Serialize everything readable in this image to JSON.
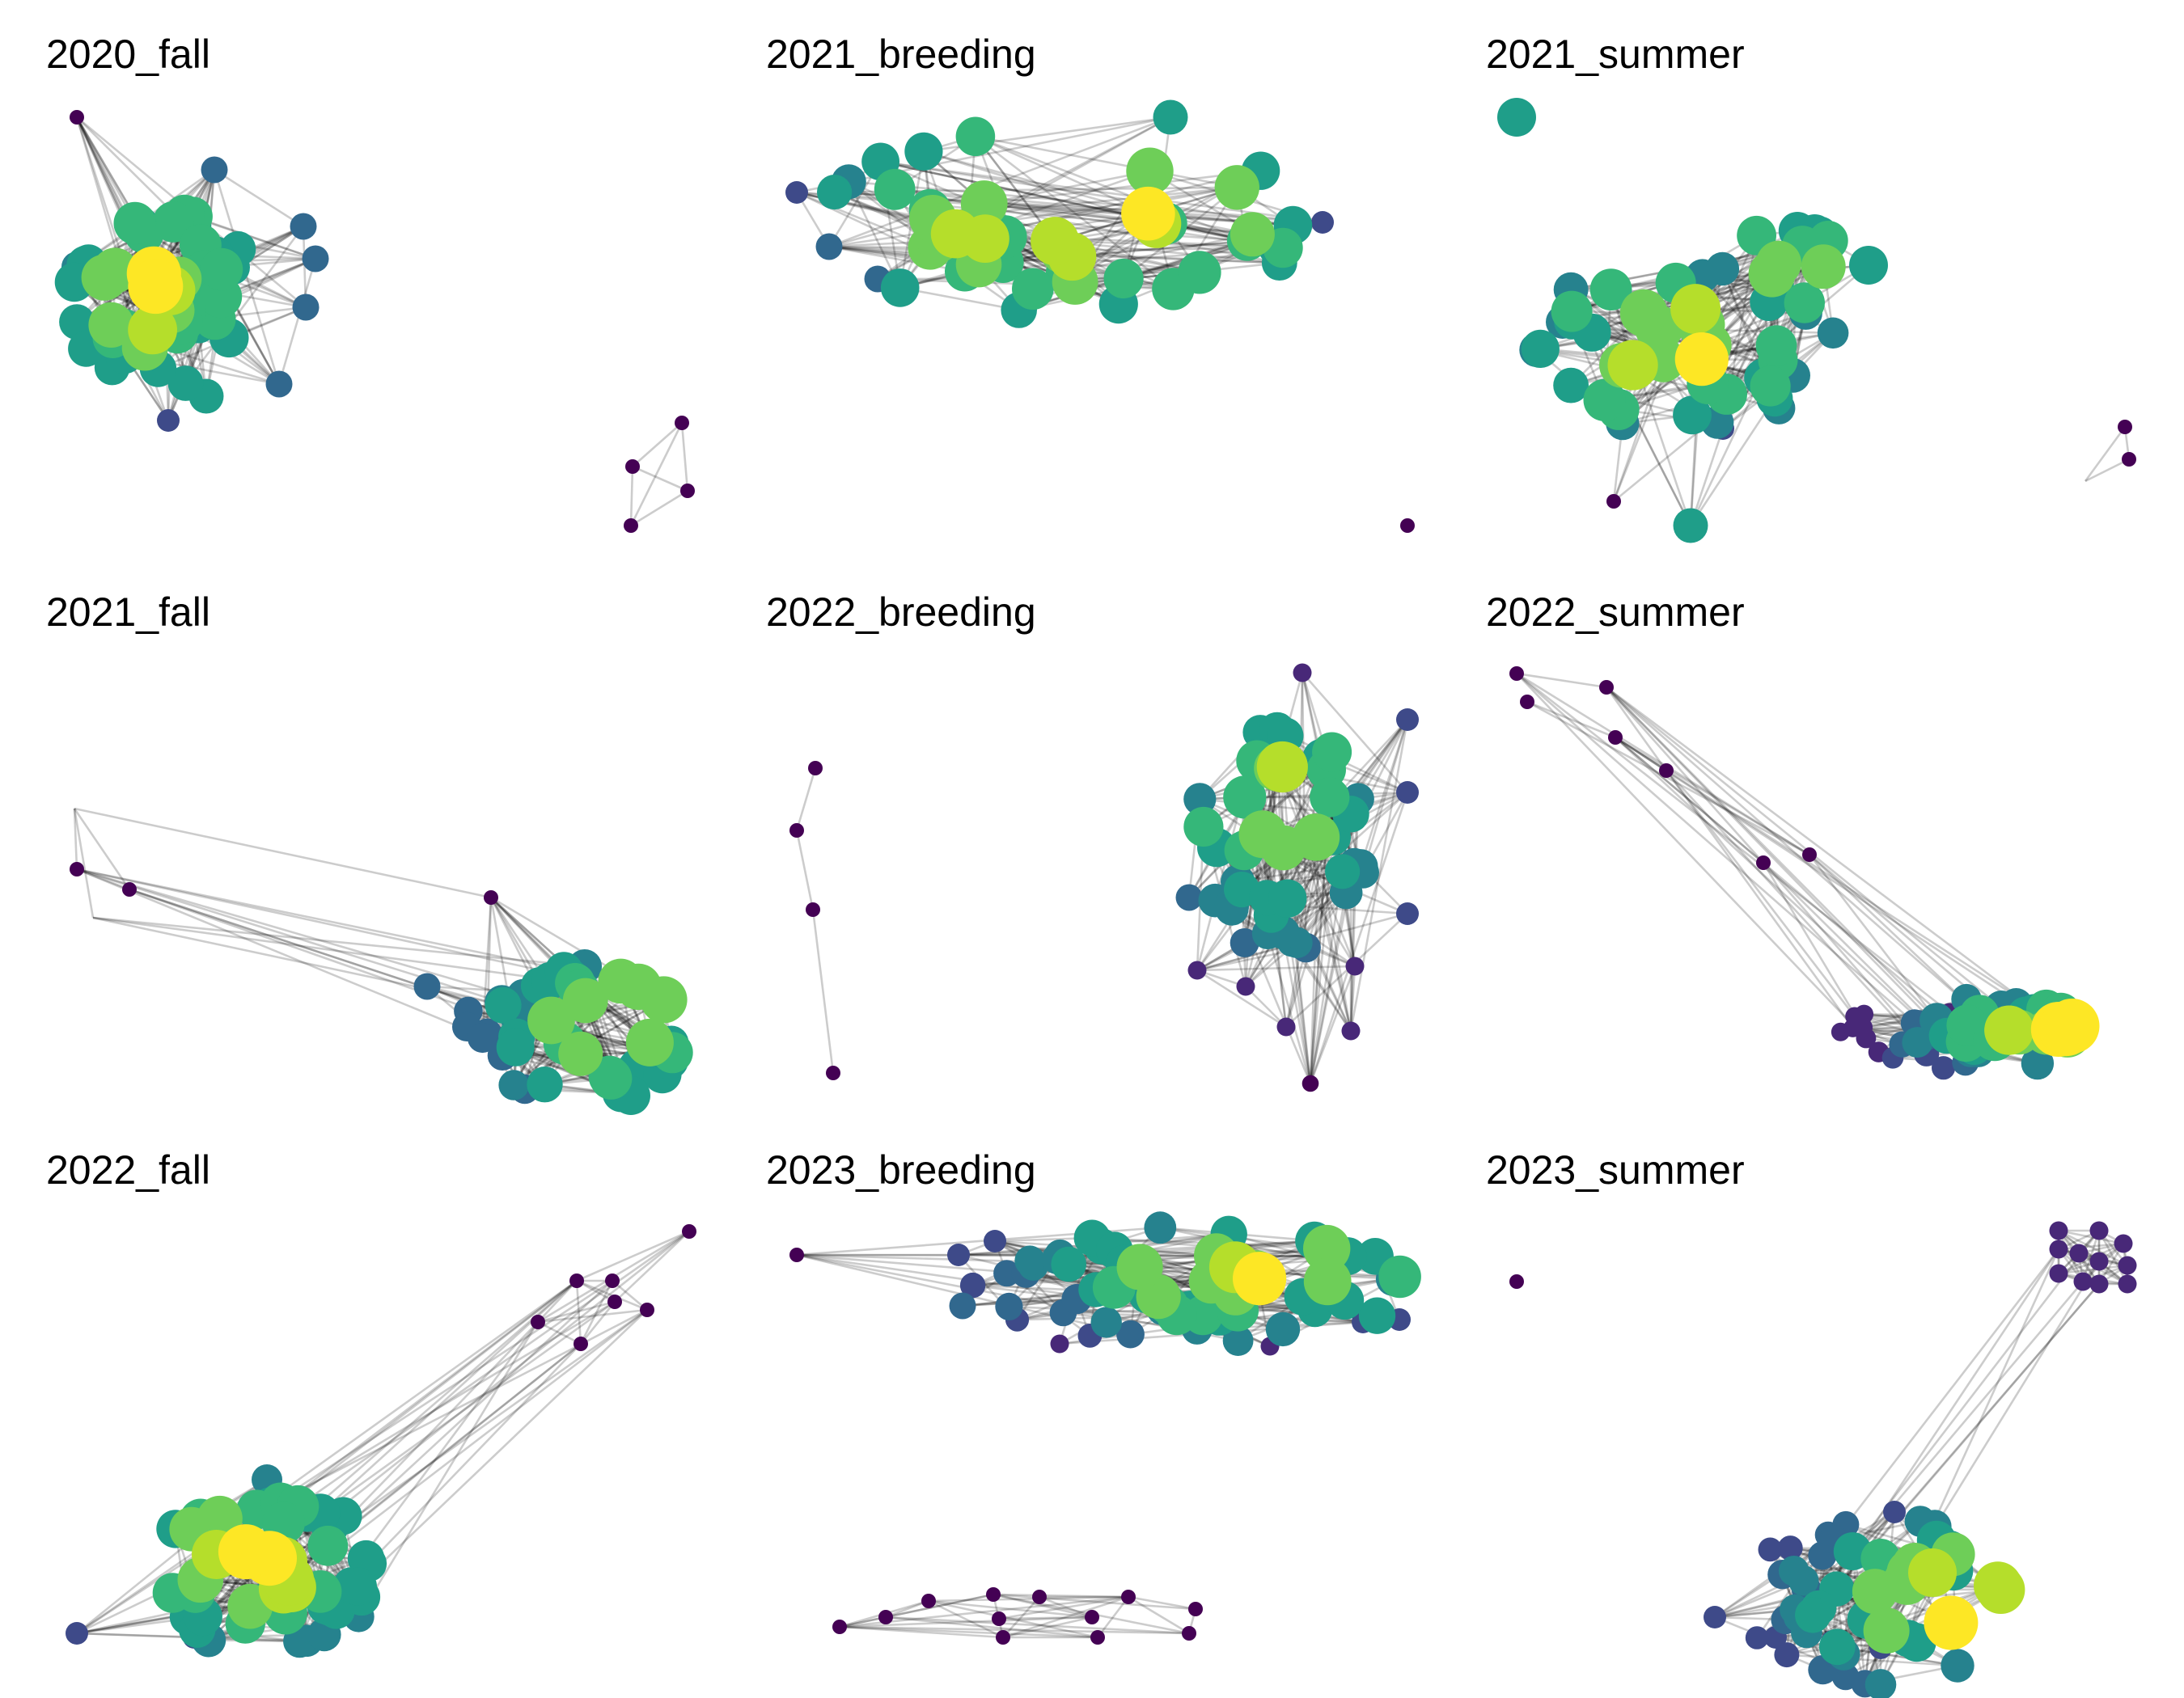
{
  "figure": {
    "panels": [
      {
        "title": "2020_fall"
      },
      {
        "title": "2021_breeding"
      },
      {
        "title": "2021_summer"
      },
      {
        "title": "2021_fall"
      },
      {
        "title": "2022_breeding"
      },
      {
        "title": "2022_summer"
      },
      {
        "title": "2022_fall"
      },
      {
        "title": "2023_breeding"
      },
      {
        "title": "2023_summer"
      }
    ],
    "node_colormap": "viridis",
    "edge_color": "#000000",
    "colors": {
      "viridis": [
        "#440154",
        "#482878",
        "#3e4a89",
        "#31688e",
        "#26828e",
        "#1f9e89",
        "#35b779",
        "#6ece58",
        "#b5de2b",
        "#fde725"
      ]
    }
  }
}
